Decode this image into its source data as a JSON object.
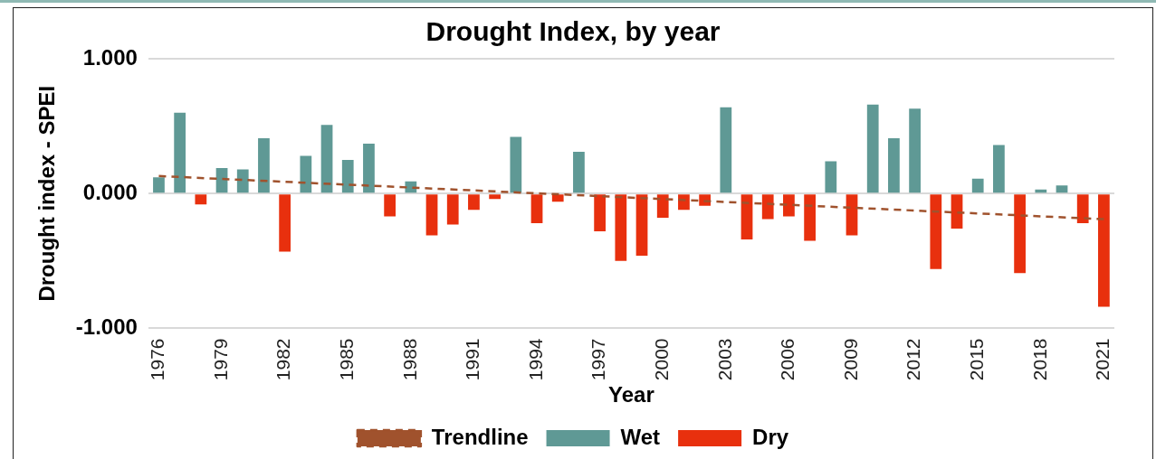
{
  "chart_data": {
    "type": "bar",
    "title": "Drought Index, by year",
    "xlabel": "Year",
    "ylabel": "Drought index - SPEI",
    "categories": [
      "1976",
      null,
      null,
      "1979",
      null,
      null,
      "1982",
      null,
      null,
      "1985",
      null,
      null,
      "1988",
      null,
      null,
      "1991",
      null,
      null,
      "1994",
      null,
      null,
      "1997",
      null,
      null,
      "2000",
      null,
      null,
      "2003",
      null,
      null,
      "2006",
      null,
      null,
      "2009",
      null,
      null,
      "2012",
      null,
      null,
      "2015",
      null,
      null,
      "2018",
      null,
      null,
      "2021"
    ],
    "series": [
      {
        "name": "Wet",
        "color": "#5f9995",
        "values": [
          0.12,
          0.6,
          null,
          0.19,
          0.18,
          0.41,
          null,
          0.28,
          0.51,
          0.25,
          0.37,
          null,
          0.09,
          null,
          null,
          null,
          null,
          0.42,
          null,
          null,
          0.31,
          null,
          null,
          null,
          null,
          null,
          null,
          0.64,
          null,
          null,
          null,
          null,
          0.24,
          null,
          0.66,
          0.41,
          0.63,
          null,
          null,
          0.11,
          0.36,
          null,
          0.03,
          0.06,
          null,
          null
        ]
      },
      {
        "name": "Dry",
        "color": "#e8300e",
        "values": [
          null,
          null,
          -0.08,
          null,
          null,
          null,
          -0.43,
          null,
          null,
          null,
          null,
          -0.17,
          null,
          -0.31,
          -0.23,
          -0.12,
          -0.04,
          null,
          -0.22,
          -0.06,
          null,
          -0.28,
          -0.5,
          -0.46,
          -0.18,
          -0.12,
          -0.09,
          null,
          -0.34,
          -0.19,
          -0.17,
          -0.35,
          null,
          -0.31,
          null,
          null,
          null,
          -0.56,
          -0.26,
          null,
          null,
          -0.59,
          null,
          null,
          -0.22,
          -0.84
        ]
      },
      {
        "name": "Trendline",
        "type": "line",
        "color": "#a0522d",
        "line_style": "dashed",
        "values": [
          0.13,
          null,
          null,
          null,
          null,
          null,
          null,
          null,
          null,
          null,
          null,
          null,
          null,
          null,
          null,
          null,
          null,
          null,
          null,
          null,
          null,
          null,
          null,
          null,
          null,
          null,
          null,
          null,
          null,
          null,
          null,
          null,
          null,
          null,
          null,
          null,
          null,
          null,
          null,
          null,
          null,
          null,
          null,
          null,
          null,
          -0.19
        ]
      }
    ],
    "ylim": [
      -1,
      1
    ],
    "yticks": [
      {
        "value": -1,
        "label": "-1.000"
      },
      {
        "value": 0,
        "label": "0.000"
      },
      {
        "value": 1,
        "label": "1.000"
      }
    ],
    "grid": "y",
    "legend": "bottom"
  }
}
